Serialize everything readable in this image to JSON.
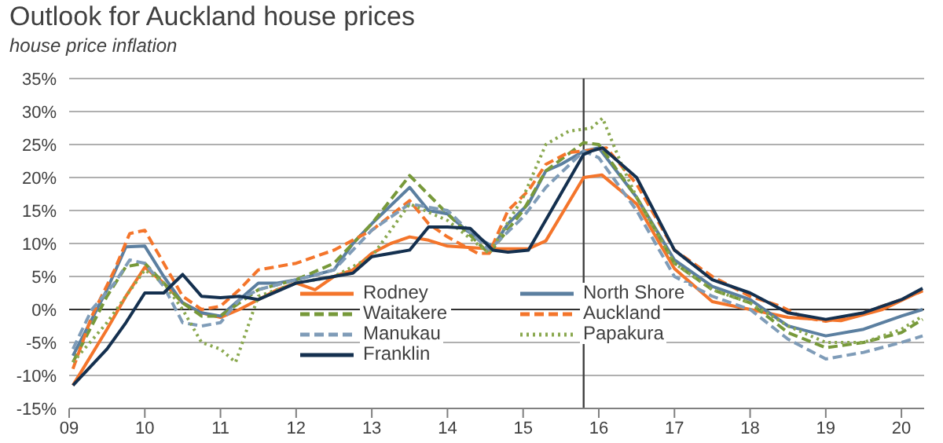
{
  "chart_data": {
    "type": "line",
    "title": "Outlook for Auckland house prices",
    "subtitle": "house price inflation",
    "xlim": [
      2009,
      2020.3
    ],
    "xticks": [
      {
        "value": 2009,
        "label": "09"
      },
      {
        "value": 2010,
        "label": "10"
      },
      {
        "value": 2011,
        "label": "11"
      },
      {
        "value": 2012,
        "label": "12"
      },
      {
        "value": 2013,
        "label": "13"
      },
      {
        "value": 2014,
        "label": "14"
      },
      {
        "value": 2015,
        "label": "15"
      },
      {
        "value": 2016,
        "label": "16"
      },
      {
        "value": 2017,
        "label": "17"
      },
      {
        "value": 2018,
        "label": "18"
      },
      {
        "value": 2019,
        "label": "19"
      },
      {
        "value": 2020,
        "label": "20"
      }
    ],
    "ylim": [
      -15,
      35
    ],
    "yticks": [
      {
        "value": -15,
        "label": "-15%"
      },
      {
        "value": -10,
        "label": "-10%"
      },
      {
        "value": -5,
        "label": "-5%"
      },
      {
        "value": 0,
        "label": "0%"
      },
      {
        "value": 5,
        "label": "5%"
      },
      {
        "value": 10,
        "label": "10%"
      },
      {
        "value": 15,
        "label": "15%"
      },
      {
        "value": 20,
        "label": "20%"
      },
      {
        "value": 25,
        "label": "25%"
      },
      {
        "value": 30,
        "label": "30%"
      },
      {
        "value": 35,
        "label": "35%"
      }
    ],
    "grid": "y",
    "legend": "bottom",
    "marker": "none",
    "ref_lines": [
      {
        "axis": "x",
        "value": 2015.8,
        "color": "#404040"
      }
    ],
    "series": [
      {
        "name": "Rodney",
        "color": "#f4752b",
        "line_style": "solid",
        "x": [
          2009.05,
          2009.5,
          2009.75,
          2010,
          2010.25,
          2010.5,
          2010.75,
          2011,
          2011.25,
          2011.5,
          2011.75,
          2012,
          2012.25,
          2012.5,
          2012.75,
          2013,
          2013.25,
          2013.5,
          2013.75,
          2014,
          2014.55,
          2015.07,
          2015.3,
          2015.8,
          2016.04,
          2016.5,
          2017,
          2017.5,
          2018,
          2018.5,
          2019.2,
          2019.75,
          2020.28
        ],
        "values": [
          -11.5,
          -3,
          2,
          6.4,
          4,
          1,
          -0.5,
          -1.2,
          0,
          1.5,
          3,
          4,
          3,
          5,
          6,
          8.5,
          10,
          11,
          10.5,
          9.6,
          9.2,
          9.2,
          10.4,
          20,
          20.4,
          16,
          6.2,
          1.2,
          0,
          -1.2,
          -1.7,
          0,
          2.9
        ]
      },
      {
        "name": "North Shore",
        "color": "#5b7fa0",
        "line_style": "solid",
        "x": [
          2009.05,
          2009.5,
          2009.75,
          2010,
          2010.25,
          2010.5,
          2010.75,
          2011,
          2011.25,
          2011.5,
          2011.75,
          2012,
          2012.5,
          2012.75,
          2013,
          2013.5,
          2013.75,
          2014,
          2014.25,
          2014.6,
          2014.8,
          2015.07,
          2015.3,
          2015.5,
          2015.8,
          2016,
          2016.5,
          2017,
          2017.5,
          2018,
          2018.5,
          2019,
          2019.5,
          2020,
          2020.28
        ],
        "values": [
          -7,
          3,
          9.5,
          9.6,
          5,
          1,
          -0.5,
          -1,
          1.5,
          4,
          4,
          4.5,
          6,
          10,
          13,
          18.5,
          15,
          14.5,
          12,
          9.5,
          13,
          16,
          21,
          22,
          24,
          24.5,
          17,
          7.5,
          3.5,
          1.5,
          -2.5,
          -4,
          -3,
          -1,
          0
        ]
      },
      {
        "name": "Waitakere",
        "color": "#77993a",
        "line_style": "dashed",
        "x": [
          2009.05,
          2009.5,
          2009.75,
          2010,
          2010.25,
          2010.5,
          2010.75,
          2011,
          2011.25,
          2011.5,
          2012,
          2012.5,
          2013,
          2013.5,
          2014,
          2014.55,
          2015,
          2015.3,
          2015.8,
          2016,
          2016.5,
          2017,
          2017.5,
          2018,
          2018.5,
          2019,
          2019.5,
          2020,
          2020.28
        ],
        "values": [
          -8,
          2,
          6.5,
          7,
          4,
          1,
          -1,
          -1,
          1,
          3,
          4.5,
          7,
          13,
          20.3,
          14.5,
          8.5,
          15,
          21,
          25.3,
          25,
          17,
          7,
          3,
          1,
          -3.5,
          -5.8,
          -5,
          -3.5,
          -1.5
        ]
      },
      {
        "name": "Auckland",
        "color": "#f4752b",
        "line_style": "dashed",
        "x": [
          2009.05,
          2009.3,
          2009.6,
          2009.8,
          2010,
          2010.25,
          2010.5,
          2010.75,
          2011,
          2011.25,
          2011.5,
          2012,
          2012.5,
          2013,
          2013.5,
          2013.75,
          2014,
          2014.4,
          2014.55,
          2014.8,
          2015.07,
          2015.3,
          2015.6,
          2015.8,
          2016.1,
          2016.5,
          2017,
          2017.5,
          2018,
          2018.4,
          2018.7,
          2019,
          2019.5,
          2020,
          2020.28
        ],
        "values": [
          -9,
          -1,
          6,
          11.5,
          12,
          7,
          2,
          0,
          0.5,
          3,
          6,
          7,
          9,
          12,
          16.5,
          13,
          11,
          8.5,
          8.5,
          15,
          18,
          22,
          23.8,
          24,
          24.5,
          19,
          9,
          5,
          2,
          0.5,
          -1.2,
          -1.8,
          -0.5,
          1.5,
          2.8
        ]
      },
      {
        "name": "Manukau",
        "color": "#7f9cb8",
        "line_style": "dashed",
        "x": [
          2009.05,
          2009.3,
          2009.6,
          2009.8,
          2010,
          2010.25,
          2010.5,
          2010.75,
          2011,
          2011.25,
          2011.5,
          2012,
          2012.5,
          2013,
          2013.5,
          2014,
          2014.55,
          2015,
          2015.3,
          2015.8,
          2016,
          2016.5,
          2017,
          2017.5,
          2018,
          2018.5,
          2019,
          2019.5,
          2020,
          2020.28
        ],
        "values": [
          -6,
          0,
          4,
          7.5,
          7,
          3.5,
          -2,
          -2.5,
          -2,
          1.5,
          3,
          4.5,
          6,
          12,
          16,
          15,
          9,
          14,
          18.5,
          24,
          23,
          15,
          5,
          2,
          0,
          -4.5,
          -7.5,
          -6.5,
          -5,
          -4
        ]
      },
      {
        "name": "Papakura",
        "color": "#8aa84f",
        "line_style": "dotted",
        "x": [
          2009.05,
          2009.5,
          2009.75,
          2010,
          2010.25,
          2010.5,
          2010.75,
          2011,
          2011.2,
          2011.5,
          2012,
          2012.5,
          2013,
          2013.5,
          2014,
          2014.55,
          2015,
          2015.3,
          2015.6,
          2015.9,
          2016.05,
          2016.3,
          2016.5,
          2017,
          2017.5,
          2018,
          2018.5,
          2019,
          2019.5,
          2020,
          2020.28
        ],
        "values": [
          -8,
          -2,
          2,
          6,
          4,
          0,
          -5,
          -6,
          -8,
          2,
          4,
          5,
          8,
          16,
          13.5,
          8.5,
          17,
          25,
          27,
          27.5,
          29,
          22,
          17,
          7,
          3,
          1,
          -2.5,
          -5,
          -5,
          -3,
          -1
        ]
      },
      {
        "name": "Franklin",
        "color": "#14304f",
        "line_style": "solid",
        "x": [
          2009.05,
          2009.5,
          2009.75,
          2010,
          2010.25,
          2010.5,
          2010.75,
          2011,
          2011.25,
          2011.5,
          2012,
          2012.5,
          2012.75,
          2013,
          2013.5,
          2013.75,
          2014,
          2014.3,
          2014.6,
          2014.8,
          2015.07,
          2015.8,
          2015.9,
          2016.05,
          2016.5,
          2017,
          2017.5,
          2018,
          2018.5,
          2019,
          2019.5,
          2020,
          2020.28
        ],
        "values": [
          -11.5,
          -6,
          -2,
          2.5,
          2.5,
          5.3,
          2,
          1.8,
          2,
          1.5,
          4,
          5,
          5.5,
          8,
          9,
          12.5,
          12.5,
          12.3,
          9,
          8.7,
          9,
          23.5,
          24,
          24.5,
          20,
          9,
          4.5,
          2.5,
          -0.5,
          -1.5,
          -0.5,
          1.5,
          3.2
        ]
      }
    ]
  }
}
